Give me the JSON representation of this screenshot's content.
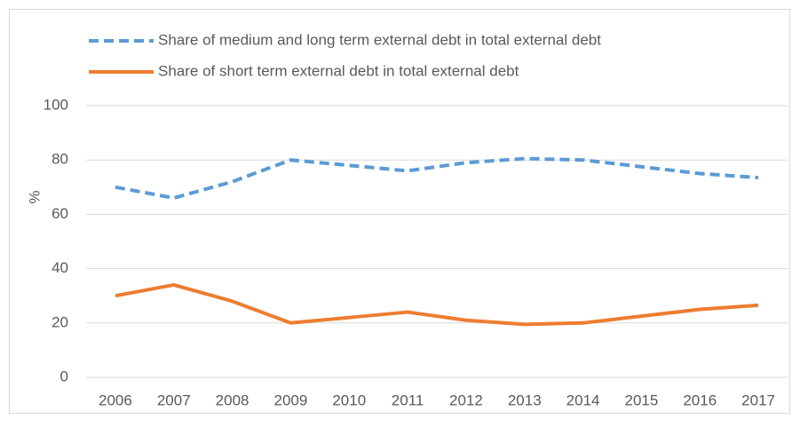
{
  "chart_data": {
    "type": "line",
    "y_label": "%",
    "categories": [
      "2006",
      "2007",
      "2008",
      "2009",
      "2010",
      "2011",
      "2012",
      "2013",
      "2014",
      "2015",
      "2016",
      "2017"
    ],
    "series": [
      {
        "name": "Share of medium and long term external debt in total external debt",
        "color": "#5b9bd5",
        "dash": true,
        "values": [
          70,
          66,
          72,
          80,
          78,
          76,
          79,
          80.5,
          80,
          77.5,
          75,
          73.5
        ]
      },
      {
        "name": "Share of short term external debt in total external debt",
        "color": "#ed7d31",
        "dash": false,
        "values": [
          30,
          34,
          28,
          20,
          22,
          24,
          21,
          19.5,
          20,
          22.5,
          25,
          26.5
        ]
      }
    ],
    "ylim": [
      0,
      100
    ],
    "yticks": [
      0,
      20,
      40,
      60,
      80,
      100
    ],
    "grid": true
  }
}
